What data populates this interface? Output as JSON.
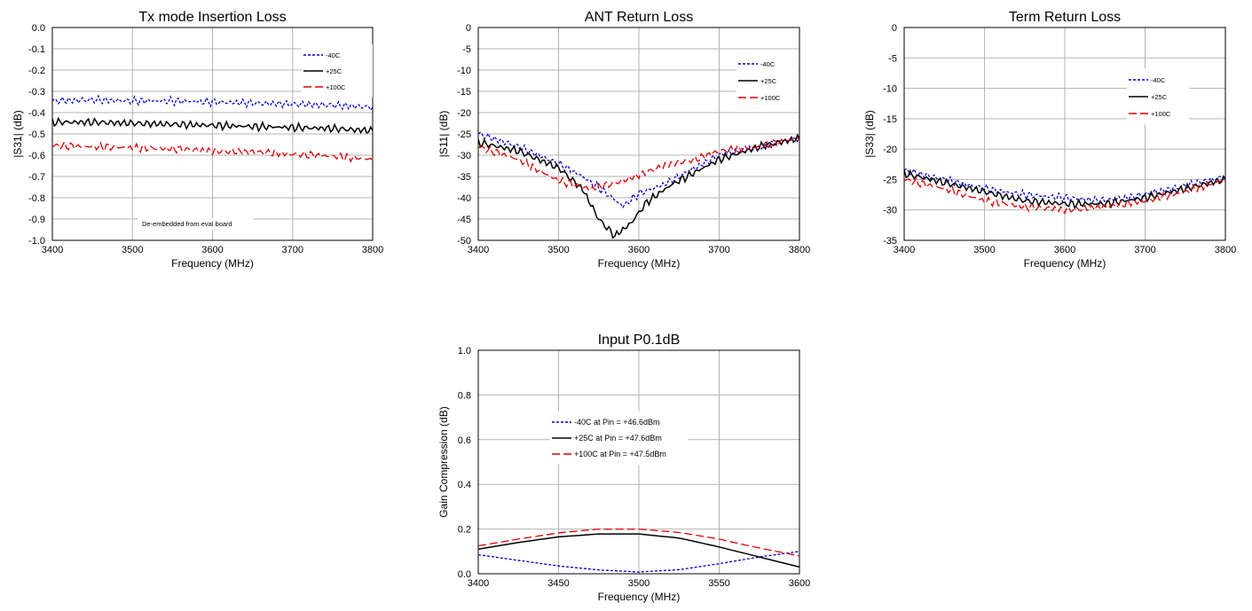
{
  "chart_data": [
    {
      "type": "line",
      "title": "Tx mode Insertion Loss",
      "xlabel": "Frequency (MHz)",
      "ylabel": "|S31| (dB)",
      "xlim": [
        3400,
        3800
      ],
      "ylim": [
        -1.0,
        0.0
      ],
      "xticks": [
        3400,
        3500,
        3600,
        3700,
        3800
      ],
      "yticks": [
        0.0,
        -0.1,
        -0.2,
        -0.3,
        -0.4,
        -0.5,
        -0.6,
        -0.7,
        -0.8,
        -0.9,
        -1.0
      ],
      "ytick_labels": [
        "0.0",
        "-0.1",
        "-0.2",
        "-0.3",
        "-0.4",
        "-0.5",
        "-0.6",
        "-0.7",
        "-0.8",
        "-0.9",
        "-1.0"
      ],
      "grid": true,
      "legend": "top-right",
      "annotation": "De-embedded from eval board",
      "series": [
        {
          "name": "-40C",
          "color": "#0000cc",
          "dash": "dashed",
          "noisy": true,
          "x": [
            3400,
            3450,
            3500,
            3550,
            3600,
            3650,
            3700,
            3750,
            3800
          ],
          "y": [
            -0.345,
            -0.34,
            -0.345,
            -0.345,
            -0.35,
            -0.355,
            -0.36,
            -0.365,
            -0.375
          ]
        },
        {
          "name": "+25C",
          "color": "#000000",
          "dash": "solid",
          "noisy": true,
          "x": [
            3400,
            3450,
            3500,
            3550,
            3600,
            3650,
            3700,
            3750,
            3800
          ],
          "y": [
            -0.445,
            -0.445,
            -0.45,
            -0.455,
            -0.46,
            -0.465,
            -0.47,
            -0.475,
            -0.485
          ]
        },
        {
          "name": "+100C",
          "color": "#dd0000",
          "dash": "longdash",
          "noisy": true,
          "x": [
            3400,
            3450,
            3500,
            3550,
            3600,
            3650,
            3700,
            3750,
            3800
          ],
          "y": [
            -0.555,
            -0.56,
            -0.565,
            -0.57,
            -0.58,
            -0.585,
            -0.595,
            -0.605,
            -0.62
          ]
        }
      ]
    },
    {
      "type": "line",
      "title": "ANT Return Loss",
      "xlabel": "Frequency (MHz)",
      "ylabel": "|S11| (dB)",
      "xlim": [
        3400,
        3800
      ],
      "ylim": [
        -50,
        0
      ],
      "xticks": [
        3400,
        3500,
        3600,
        3700,
        3800
      ],
      "yticks": [
        0,
        -5,
        -10,
        -15,
        -20,
        -25,
        -30,
        -35,
        -40,
        -45,
        -50
      ],
      "ytick_labels": [
        "0",
        "-5",
        "-10",
        "-15",
        "-20",
        "-25",
        "-30",
        "-35",
        "-40",
        "-45",
        "-50"
      ],
      "grid": true,
      "legend": "top-right",
      "series": [
        {
          "name": "-40C",
          "color": "#0000cc",
          "dash": "dashed",
          "noisy": true,
          "x": [
            3400,
            3450,
            3500,
            3530,
            3560,
            3580,
            3600,
            3630,
            3660,
            3700,
            3750,
            3800
          ],
          "y": [
            -25,
            -28,
            -32,
            -35,
            -39,
            -42,
            -39,
            -37,
            -34,
            -30,
            -28,
            -26
          ]
        },
        {
          "name": "+25C",
          "color": "#000000",
          "dash": "solid",
          "noisy": true,
          "x": [
            3400,
            3450,
            3500,
            3530,
            3550,
            3570,
            3590,
            3610,
            3640,
            3670,
            3700,
            3750,
            3800
          ],
          "y": [
            -27,
            -29,
            -33,
            -38,
            -45,
            -49,
            -46,
            -41,
            -37,
            -34,
            -31,
            -28,
            -26
          ]
        },
        {
          "name": "+100C",
          "color": "#dd0000",
          "dash": "longdash",
          "noisy": true,
          "x": [
            3400,
            3450,
            3500,
            3540,
            3580,
            3610,
            3640,
            3670,
            3700,
            3750,
            3800
          ],
          "y": [
            -28,
            -31,
            -36,
            -38,
            -36,
            -34,
            -32,
            -31,
            -29,
            -28,
            -26
          ]
        }
      ]
    },
    {
      "type": "line",
      "title": "Term Return Loss",
      "xlabel": "Frequency (MHz)",
      "ylabel": "|S33| (dB)",
      "xlim": [
        3400,
        3800
      ],
      "ylim": [
        -35,
        0
      ],
      "xticks": [
        3400,
        3500,
        3600,
        3700,
        3800
      ],
      "yticks": [
        0,
        -5,
        -10,
        -15,
        -20,
        -25,
        -30,
        -35
      ],
      "ytick_labels": [
        "0",
        "-5",
        "-10",
        "-15",
        "-20",
        "-25",
        "-30",
        "-35"
      ],
      "grid": true,
      "legend": "top-right",
      "series": [
        {
          "name": "-40C",
          "color": "#0000cc",
          "dash": "dashed",
          "noisy": true,
          "x": [
            3400,
            3450,
            3500,
            3550,
            3600,
            3650,
            3700,
            3750,
            3800
          ],
          "y": [
            -23.5,
            -25,
            -26.5,
            -27.5,
            -28,
            -28.5,
            -27.5,
            -26,
            -24.5
          ]
        },
        {
          "name": "+25C",
          "color": "#000000",
          "dash": "solid",
          "noisy": true,
          "x": [
            3400,
            3450,
            3500,
            3550,
            3600,
            3650,
            3700,
            3750,
            3800
          ],
          "y": [
            -24,
            -25.5,
            -27,
            -28.5,
            -29,
            -29,
            -28,
            -26.5,
            -25
          ]
        },
        {
          "name": "+100C",
          "color": "#dd0000",
          "dash": "longdash",
          "noisy": true,
          "x": [
            3400,
            3450,
            3500,
            3550,
            3600,
            3650,
            3700,
            3750,
            3800
          ],
          "y": [
            -25,
            -26.5,
            -28.5,
            -29.5,
            -30,
            -29.5,
            -28.5,
            -27,
            -25
          ]
        }
      ]
    },
    {
      "type": "line",
      "title": "Input P0.1dB",
      "xlabel": "Frequency (MHz)",
      "ylabel": "Gain Compression (dB)",
      "xlim": [
        3400,
        3600
      ],
      "ylim": [
        0.0,
        1.0
      ],
      "xticks": [
        3400,
        3450,
        3500,
        3550,
        3600
      ],
      "yticks": [
        0.0,
        0.2,
        0.4,
        0.6,
        0.8,
        1.0
      ],
      "ytick_labels": [
        "0.0",
        "0.2",
        "0.4",
        "0.6",
        "0.8",
        "1.0"
      ],
      "grid": true,
      "legend": "center-left",
      "series": [
        {
          "name": "-40C at Pin = +46.6dBm",
          "color": "#0000cc",
          "dash": "dashed",
          "noisy": false,
          "x": [
            3400,
            3425,
            3450,
            3475,
            3500,
            3525,
            3550,
            3575,
            3600
          ],
          "y": [
            0.085,
            0.06,
            0.035,
            0.017,
            0.008,
            0.018,
            0.045,
            0.075,
            0.1
          ]
        },
        {
          "name": "+25C at Pin = +47.6dBm",
          "color": "#000000",
          "dash": "solid",
          "noisy": false,
          "x": [
            3400,
            3425,
            3450,
            3475,
            3500,
            3525,
            3550,
            3575,
            3600
          ],
          "y": [
            0.11,
            0.14,
            0.165,
            0.178,
            0.178,
            0.16,
            0.12,
            0.075,
            0.03
          ]
        },
        {
          "name": "+100C at Pin = +47.5dBm",
          "color": "#dd0000",
          "dash": "longdash",
          "noisy": false,
          "x": [
            3400,
            3425,
            3450,
            3475,
            3500,
            3525,
            3550,
            3575,
            3600
          ],
          "y": [
            0.125,
            0.155,
            0.183,
            0.2,
            0.2,
            0.185,
            0.155,
            0.115,
            0.08
          ]
        }
      ]
    }
  ]
}
